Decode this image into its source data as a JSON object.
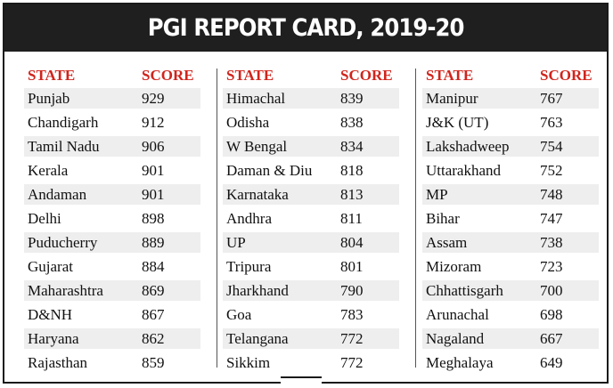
{
  "title": "PGI REPORT CARD, 2019-20",
  "header": {
    "state_label": "STATE",
    "score_label": "SCORE"
  },
  "columns": [
    {
      "rows": [
        {
          "state": "Punjab",
          "score": "929"
        },
        {
          "state": "Chandigarh",
          "score": "912"
        },
        {
          "state": "Tamil Nadu",
          "score": "906"
        },
        {
          "state": "Kerala",
          "score": "901"
        },
        {
          "state": "Andaman",
          "score": "901"
        },
        {
          "state": "Delhi",
          "score": "898"
        },
        {
          "state": "Puducherry",
          "score": "889"
        },
        {
          "state": "Gujarat",
          "score": "884"
        },
        {
          "state": "Maharashtra",
          "score": "869"
        },
        {
          "state": "D&NH",
          "score": "867"
        },
        {
          "state": "Haryana",
          "score": "862"
        },
        {
          "state": "Rajasthan",
          "score": "859"
        }
      ]
    },
    {
      "rows": [
        {
          "state": "Himachal",
          "score": "839"
        },
        {
          "state": "Odisha",
          "score": "838"
        },
        {
          "state": "W Bengal",
          "score": "834"
        },
        {
          "state": "Daman & Diu",
          "score": "818"
        },
        {
          "state": "Karnataka",
          "score": "813"
        },
        {
          "state": "Andhra",
          "score": "811"
        },
        {
          "state": "UP",
          "score": "804"
        },
        {
          "state": "Tripura",
          "score": "801"
        },
        {
          "state": "Jharkhand",
          "score": "790"
        },
        {
          "state": "Goa",
          "score": "783"
        },
        {
          "state": "Telangana",
          "score": "772"
        },
        {
          "state": "Sikkim",
          "score": "772"
        }
      ]
    },
    {
      "rows": [
        {
          "state": "Manipur",
          "score": "767"
        },
        {
          "state": "J&K (UT)",
          "score": "763"
        },
        {
          "state": "Lakshadweep",
          "score": "754"
        },
        {
          "state": "Uttarakhand",
          "score": "752"
        },
        {
          "state": "MP",
          "score": "748"
        },
        {
          "state": "Bihar",
          "score": "747"
        },
        {
          "state": "Assam",
          "score": "738"
        },
        {
          "state": "Mizoram",
          "score": "723"
        },
        {
          "state": "Chhattisgarh",
          "score": "700"
        },
        {
          "state": "Arunachal",
          "score": "698"
        },
        {
          "state": "Nagaland",
          "score": "667"
        },
        {
          "state": "Meghalaya",
          "score": "649"
        }
      ]
    }
  ],
  "colors": {
    "header_red": "#d0241c",
    "banner": "#1f1f1f",
    "row_shade": "#eeeeee"
  }
}
